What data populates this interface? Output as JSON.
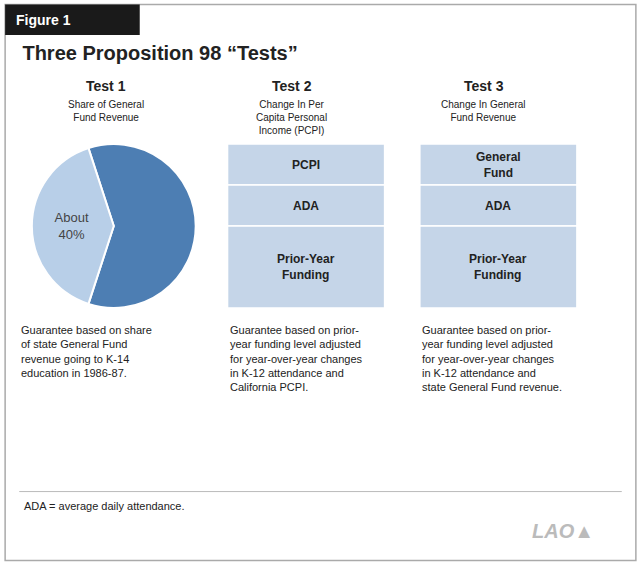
{
  "chart_data": {
    "type": "pie",
    "title": "Three Proposition 98 “Tests”",
    "values": [
      60,
      40
    ],
    "colors": [
      "#4d7eb3",
      "#b8cfe8"
    ],
    "value_labels": [
      null,
      "About\n40%"
    ],
    "annotations": [
      "Figure 1",
      "Test 1",
      "Test 2",
      "Test 3",
      "Share of General\nFund Revenue",
      "Change In Per\nCapita Personal\nIncome (PCPI)",
      "Change In General\nFund Revenue",
      "PCPI",
      "ADA",
      "Prior-Year\nFunding",
      "General\nFund",
      "ADA",
      "Prior-Year\nFunding",
      "Guarantee based on share\nof state General Fund\nrevenue going to K-14\neducation in 1986-87.",
      "Guarantee based on prior-\nyear funding level adjusted\nfor year-over-year changes\nin K-12 attendance and\nCalifornia PCPI.",
      "Guarantee based on prior-\nyear funding level adjusted\nfor year-over-year changes\nin K-12 attendance and\nstate General Fund revenue.",
      "ADA = average daily attendance.",
      "LAO▲"
    ]
  }
}
